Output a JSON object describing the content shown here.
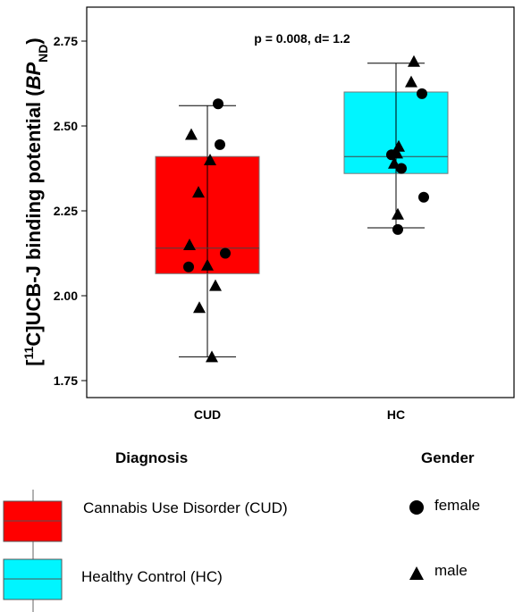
{
  "chart_data": {
    "type": "boxplot",
    "ylabel_prefix": "[",
    "ylabel_sup": "11",
    "ylabel_main": "C]UCB-J binding potential (",
    "ylabel_italic": "BP",
    "ylabel_sub": "ND",
    "ylabel_suffix": ")",
    "annotation": "p = 0.008, d= 1.2",
    "ylim": [
      1.7,
      2.85
    ],
    "yticks": [
      1.75,
      2.0,
      2.25,
      2.5,
      2.75
    ],
    "ytick_labels": [
      "1.75",
      "2.00",
      "2.25",
      "2.50",
      "2.75"
    ],
    "categories": [
      "CUD",
      "HC"
    ],
    "boxes": [
      {
        "category": "CUD",
        "color": "#ff0000",
        "whisker_low": 1.82,
        "q1": 2.065,
        "median": 2.14,
        "q3": 2.41,
        "whisker_high": 2.56,
        "points": [
          {
            "gender": "female",
            "y": 2.565,
            "x": 0.12
          },
          {
            "gender": "female",
            "y": 2.445,
            "x": 0.14
          },
          {
            "gender": "female",
            "y": 2.125,
            "x": 0.2
          },
          {
            "gender": "female",
            "y": 2.085,
            "x": -0.21
          },
          {
            "gender": "male",
            "y": 2.475,
            "x": -0.18
          },
          {
            "gender": "male",
            "y": 2.4,
            "x": 0.03
          },
          {
            "gender": "male",
            "y": 2.305,
            "x": -0.1
          },
          {
            "gender": "male",
            "y": 2.15,
            "x": -0.2
          },
          {
            "gender": "male",
            "y": 2.09,
            "x": 0.0
          },
          {
            "gender": "male",
            "y": 2.03,
            "x": 0.09
          },
          {
            "gender": "male",
            "y": 1.965,
            "x": -0.09
          },
          {
            "gender": "male",
            "y": 1.82,
            "x": 0.05
          }
        ]
      },
      {
        "category": "HC",
        "color": "#00f5ff",
        "whisker_low": 2.2,
        "q1": 2.36,
        "median": 2.41,
        "q3": 2.6,
        "whisker_high": 2.685,
        "points": [
          {
            "gender": "female",
            "y": 2.595,
            "x": 0.29
          },
          {
            "gender": "female",
            "y": 2.415,
            "x": -0.05
          },
          {
            "gender": "female",
            "y": 2.375,
            "x": 0.06
          },
          {
            "gender": "female",
            "y": 2.29,
            "x": 0.31
          },
          {
            "gender": "female",
            "y": 2.195,
            "x": 0.02
          },
          {
            "gender": "male",
            "y": 2.69,
            "x": 0.2
          },
          {
            "gender": "male",
            "y": 2.63,
            "x": 0.17
          },
          {
            "gender": "male",
            "y": 2.44,
            "x": 0.03
          },
          {
            "gender": "male",
            "y": 2.42,
            "x": 0.01
          },
          {
            "gender": "male",
            "y": 2.39,
            "x": -0.02
          },
          {
            "gender": "male",
            "y": 2.24,
            "x": 0.02
          }
        ]
      }
    ]
  },
  "legend": {
    "diagnosis_title": "Diagnosis",
    "gender_title": "Gender",
    "diagnosis_items": [
      {
        "label": "Cannabis Use Disorder (CUD)",
        "color": "#ff0000"
      },
      {
        "label": "Healthy Control (HC)",
        "color": "#00f5ff"
      }
    ],
    "gender_items": [
      {
        "label": "female",
        "shape": "circle"
      },
      {
        "label": "male",
        "shape": "triangle"
      }
    ]
  }
}
